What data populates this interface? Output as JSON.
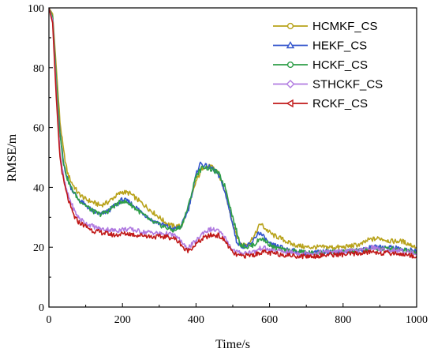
{
  "chart_data": {
    "type": "line",
    "title": "",
    "xlabel": "Time/s",
    "ylabel": "RMSE/m",
    "xlim": [
      0,
      1000
    ],
    "ylim": [
      0,
      100
    ],
    "xticks": [
      "0",
      "200",
      "400",
      "600",
      "800",
      "1000"
    ],
    "yticks": [
      "0",
      "20",
      "40",
      "60",
      "80",
      "100"
    ],
    "grid": false,
    "legend": "top-right",
    "series": [
      {
        "name": "HCMKF_CS",
        "color": "#b8a21a",
        "marker": "circle",
        "points": [
          [
            0,
            100
          ],
          [
            10,
            98
          ],
          [
            20,
            80
          ],
          [
            30,
            62
          ],
          [
            40,
            52
          ],
          [
            50,
            45
          ],
          [
            60,
            42
          ],
          [
            70,
            40
          ],
          [
            80,
            38
          ],
          [
            100,
            36
          ],
          [
            120,
            35
          ],
          [
            140,
            34
          ],
          [
            160,
            35
          ],
          [
            180,
            37
          ],
          [
            200,
            38.5
          ],
          [
            220,
            38
          ],
          [
            240,
            36
          ],
          [
            260,
            34
          ],
          [
            280,
            32
          ],
          [
            300,
            30
          ],
          [
            320,
            28
          ],
          [
            340,
            27
          ],
          [
            360,
            27
          ],
          [
            380,
            33
          ],
          [
            400,
            42
          ],
          [
            420,
            47
          ],
          [
            440,
            47
          ],
          [
            460,
            45
          ],
          [
            480,
            38
          ],
          [
            500,
            28
          ],
          [
            520,
            21
          ],
          [
            540,
            21
          ],
          [
            560,
            24
          ],
          [
            575,
            28
          ],
          [
            590,
            26
          ],
          [
            610,
            24
          ],
          [
            630,
            23
          ],
          [
            660,
            21
          ],
          [
            700,
            20
          ],
          [
            750,
            20
          ],
          [
            800,
            20
          ],
          [
            850,
            21
          ],
          [
            870,
            22.5
          ],
          [
            900,
            23
          ],
          [
            930,
            22
          ],
          [
            960,
            22
          ],
          [
            980,
            21
          ],
          [
            1000,
            20
          ]
        ]
      },
      {
        "name": "HEKF_CS",
        "color": "#3355cc",
        "marker": "triangle",
        "points": [
          [
            0,
            100
          ],
          [
            10,
            97
          ],
          [
            20,
            76
          ],
          [
            30,
            58
          ],
          [
            40,
            48
          ],
          [
            50,
            43
          ],
          [
            60,
            40
          ],
          [
            70,
            38
          ],
          [
            80,
            36
          ],
          [
            100,
            34
          ],
          [
            120,
            32
          ],
          [
            140,
            31
          ],
          [
            160,
            32
          ],
          [
            180,
            34
          ],
          [
            200,
            36
          ],
          [
            220,
            35
          ],
          [
            240,
            33
          ],
          [
            260,
            31
          ],
          [
            280,
            29
          ],
          [
            300,
            28
          ],
          [
            320,
            27
          ],
          [
            340,
            26
          ],
          [
            360,
            27
          ],
          [
            380,
            33
          ],
          [
            400,
            44
          ],
          [
            410,
            48
          ],
          [
            430,
            47
          ],
          [
            450,
            46
          ],
          [
            470,
            42
          ],
          [
            490,
            33
          ],
          [
            510,
            22
          ],
          [
            530,
            20
          ],
          [
            550,
            21
          ],
          [
            570,
            25
          ],
          [
            580,
            24
          ],
          [
            600,
            21
          ],
          [
            630,
            20
          ],
          [
            660,
            19
          ],
          [
            700,
            18
          ],
          [
            750,
            18.5
          ],
          [
            800,
            18.5
          ],
          [
            850,
            19
          ],
          [
            880,
            20
          ],
          [
            910,
            20
          ],
          [
            940,
            20
          ],
          [
            970,
            19
          ],
          [
            1000,
            19
          ]
        ]
      },
      {
        "name": "HCKF_CS",
        "color": "#2e9e48",
        "marker": "circle",
        "points": [
          [
            0,
            100
          ],
          [
            10,
            97
          ],
          [
            20,
            76
          ],
          [
            30,
            58
          ],
          [
            40,
            48
          ],
          [
            50,
            43
          ],
          [
            60,
            40
          ],
          [
            70,
            38
          ],
          [
            80,
            36
          ],
          [
            100,
            34
          ],
          [
            120,
            32
          ],
          [
            140,
            31
          ],
          [
            160,
            32
          ],
          [
            180,
            34
          ],
          [
            200,
            35.5
          ],
          [
            220,
            34.5
          ],
          [
            240,
            32.5
          ],
          [
            260,
            30.5
          ],
          [
            280,
            28.5
          ],
          [
            300,
            27.5
          ],
          [
            320,
            26.5
          ],
          [
            340,
            25.5
          ],
          [
            360,
            27
          ],
          [
            380,
            34
          ],
          [
            400,
            44
          ],
          [
            420,
            47
          ],
          [
            440,
            46
          ],
          [
            460,
            45
          ],
          [
            480,
            40
          ],
          [
            500,
            30
          ],
          [
            520,
            21
          ],
          [
            540,
            20
          ],
          [
            560,
            21
          ],
          [
            575,
            23
          ],
          [
            590,
            22
          ],
          [
            610,
            20
          ],
          [
            640,
            19
          ],
          [
            680,
            18.5
          ],
          [
            720,
            18
          ],
          [
            760,
            18.5
          ],
          [
            800,
            18.5
          ],
          [
            850,
            19
          ],
          [
            880,
            19.5
          ],
          [
            910,
            19.5
          ],
          [
            940,
            19.5
          ],
          [
            970,
            19
          ],
          [
            1000,
            18.5
          ]
        ]
      },
      {
        "name": "STHCKF_CS",
        "color": "#b07ae0",
        "marker": "diamond",
        "points": [
          [
            0,
            100
          ],
          [
            10,
            96
          ],
          [
            20,
            72
          ],
          [
            30,
            52
          ],
          [
            40,
            43
          ],
          [
            50,
            38
          ],
          [
            60,
            35
          ],
          [
            70,
            32
          ],
          [
            80,
            30
          ],
          [
            100,
            28
          ],
          [
            120,
            27
          ],
          [
            140,
            26
          ],
          [
            160,
            26
          ],
          [
            180,
            25.5
          ],
          [
            200,
            26
          ],
          [
            220,
            26
          ],
          [
            240,
            25.5
          ],
          [
            260,
            25
          ],
          [
            280,
            25
          ],
          [
            300,
            24.5
          ],
          [
            320,
            24.5
          ],
          [
            340,
            24
          ],
          [
            360,
            22
          ],
          [
            370,
            20
          ],
          [
            380,
            20
          ],
          [
            400,
            22
          ],
          [
            420,
            25
          ],
          [
            440,
            26
          ],
          [
            460,
            25.5
          ],
          [
            480,
            23
          ],
          [
            500,
            19
          ],
          [
            520,
            18
          ],
          [
            560,
            18.5
          ],
          [
            580,
            20
          ],
          [
            600,
            19
          ],
          [
            640,
            18.5
          ],
          [
            680,
            18
          ],
          [
            720,
            18
          ],
          [
            760,
            18.5
          ],
          [
            800,
            18.5
          ],
          [
            850,
            19
          ],
          [
            880,
            20
          ],
          [
            910,
            19
          ],
          [
            940,
            19
          ],
          [
            970,
            18.5
          ],
          [
            1000,
            18
          ]
        ]
      },
      {
        "name": "RCKF_CS",
        "color": "#c01818",
        "marker": "left-triangle",
        "points": [
          [
            0,
            100
          ],
          [
            10,
            95
          ],
          [
            20,
            70
          ],
          [
            30,
            50
          ],
          [
            40,
            42
          ],
          [
            50,
            37
          ],
          [
            60,
            33
          ],
          [
            70,
            30
          ],
          [
            80,
            28.5
          ],
          [
            100,
            27
          ],
          [
            120,
            25.5
          ],
          [
            140,
            25
          ],
          [
            160,
            24.5
          ],
          [
            180,
            24
          ],
          [
            200,
            24.5
          ],
          [
            220,
            24.5
          ],
          [
            240,
            24
          ],
          [
            260,
            24
          ],
          [
            280,
            23.5
          ],
          [
            300,
            23.5
          ],
          [
            320,
            23.5
          ],
          [
            340,
            23
          ],
          [
            360,
            21
          ],
          [
            370,
            19
          ],
          [
            380,
            19
          ],
          [
            400,
            21
          ],
          [
            420,
            23
          ],
          [
            440,
            24
          ],
          [
            460,
            24
          ],
          [
            480,
            22
          ],
          [
            500,
            18
          ],
          [
            520,
            17
          ],
          [
            560,
            17.5
          ],
          [
            580,
            18.5
          ],
          [
            600,
            18
          ],
          [
            640,
            17.5
          ],
          [
            680,
            17
          ],
          [
            720,
            17
          ],
          [
            760,
            17.5
          ],
          [
            800,
            17.5
          ],
          [
            850,
            18
          ],
          [
            880,
            18.5
          ],
          [
            910,
            18
          ],
          [
            940,
            18
          ],
          [
            970,
            17.5
          ],
          [
            1000,
            17
          ]
        ]
      }
    ]
  }
}
